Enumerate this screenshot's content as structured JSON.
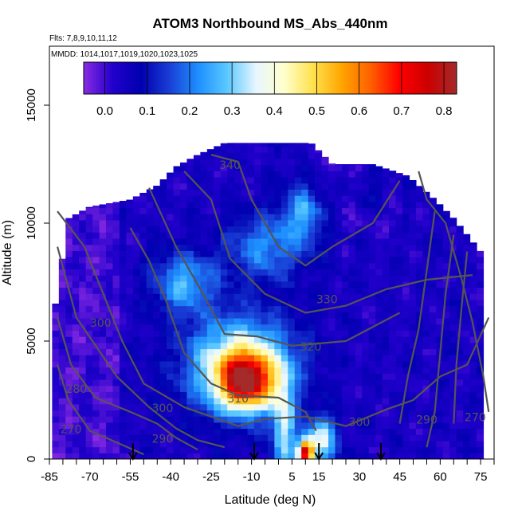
{
  "chart_data": {
    "type": "heatmap",
    "title": "ATOM3 Northbound MS_Abs_440nm",
    "subtitle_flights": "Flts: 7,8,9,10,11,12",
    "subtitle_dates": "MMDD: 1014,1017,1019,1020,1023,1025",
    "xlabel": "Latitude (deg N)",
    "ylabel": "Altitude (m)",
    "xlim": [
      -85,
      80
    ],
    "ylim": [
      0,
      17500
    ],
    "x_ticks": [
      -85,
      -70,
      -55,
      -40,
      -25,
      -10,
      5,
      15,
      30,
      45,
      60,
      75
    ],
    "x_tick_labels": [
      "-85",
      "-70",
      "-55",
      "-40",
      "-25",
      "-10",
      "5",
      "15",
      "30",
      "45",
      "60",
      "75"
    ],
    "y_ticks": [
      0,
      5000,
      10000,
      15000
    ],
    "y_tick_labels": [
      "0",
      "5000",
      "10000",
      "15000"
    ],
    "colorbar": {
      "range": [
        -0.05,
        0.83
      ],
      "ticks": [
        0.0,
        0.1,
        0.2,
        0.3,
        0.4,
        0.5,
        0.6,
        0.7,
        0.8
      ],
      "tick_labels": [
        "0.0",
        "0.1",
        "0.2",
        "0.3",
        "0.4",
        "0.5",
        "0.6",
        "0.7",
        "0.8"
      ],
      "colors": [
        "#8a2be2",
        "#2200cc",
        "#0000b0",
        "#1a3fd6",
        "#1e90ff",
        "#5bc8ff",
        "#e8f6ff",
        "#ffffcc",
        "#ffe14d",
        "#ffa500",
        "#ff6000",
        "#ff0000",
        "#cc0000",
        "#a52a2a"
      ]
    },
    "data_envelope": [
      {
        "lat": -83,
        "bottom": 0,
        "top": 6400
      },
      {
        "lat": -78,
        "bottom": 0,
        "top": 10200
      },
      {
        "lat": -70,
        "bottom": 0,
        "top": 10700
      },
      {
        "lat": -55,
        "bottom": 0,
        "top": 11000
      },
      {
        "lat": -45,
        "bottom": 0,
        "top": 11600
      },
      {
        "lat": -38,
        "bottom": 0,
        "top": 12400
      },
      {
        "lat": -30,
        "bottom": 0,
        "top": 12900
      },
      {
        "lat": -20,
        "bottom": 0,
        "top": 13400
      },
      {
        "lat": 0,
        "bottom": 0,
        "top": 13400
      },
      {
        "lat": 12,
        "bottom": 0,
        "top": 13400
      },
      {
        "lat": 20,
        "bottom": 0,
        "top": 12500
      },
      {
        "lat": 35,
        "bottom": 0,
        "top": 12500
      },
      {
        "lat": 48,
        "bottom": 0,
        "top": 12000
      },
      {
        "lat": 58,
        "bottom": 0,
        "top": 11000
      },
      {
        "lat": 65,
        "bottom": 0,
        "top": 10200
      },
      {
        "lat": 70,
        "bottom": 0,
        "top": 9500
      },
      {
        "lat": 77,
        "bottom": 0,
        "top": 8500
      }
    ],
    "hotspots": [
      {
        "lat": -12,
        "alt": 3300,
        "value": 0.55,
        "sd_lat": 7,
        "sd_alt": 800
      },
      {
        "lat": -14,
        "alt": 4000,
        "value": 0.38,
        "sd_lat": 14,
        "sd_alt": 1400
      },
      {
        "lat": -35,
        "alt": 7500,
        "value": 0.22,
        "sd_lat": 8,
        "sd_alt": 900
      },
      {
        "lat": -5,
        "alt": 9000,
        "value": 0.18,
        "sd_lat": 10,
        "sd_alt": 1000
      },
      {
        "lat": 10,
        "alt": 300,
        "value": 0.65,
        "sd_lat": 2,
        "sd_alt": 400
      },
      {
        "lat": 16,
        "alt": 800,
        "value": 0.32,
        "sd_lat": 4,
        "sd_alt": 700
      },
      {
        "lat": 2,
        "alt": 1200,
        "value": 0.28,
        "sd_lat": 3,
        "sd_alt": 1500
      },
      {
        "lat": 10,
        "alt": 10500,
        "value": 0.2,
        "sd_lat": 6,
        "sd_alt": 900
      },
      {
        "lat": 35,
        "alt": 11500,
        "value": 0.06,
        "sd_lat": 6,
        "sd_alt": 800
      }
    ],
    "contours": [
      {
        "label": "270",
        "points": [
          [
            -82,
            4000
          ],
          [
            -78,
            2500
          ],
          [
            -70,
            1200
          ],
          [
            -60,
            700
          ],
          [
            -50,
            200
          ]
        ]
      },
      {
        "label": "280",
        "points": [
          [
            -82,
            6000
          ],
          [
            -77,
            4000
          ],
          [
            -68,
            2600
          ],
          [
            -55,
            2000
          ],
          [
            -45,
            1500
          ],
          [
            -38,
            900
          ],
          [
            -30,
            400
          ]
        ]
      },
      {
        "label": "290",
        "points": [
          [
            -82,
            9000
          ],
          [
            -75,
            6000
          ],
          [
            -60,
            3500
          ],
          [
            -48,
            2200
          ],
          [
            -38,
            1300
          ],
          [
            -30,
            800
          ],
          [
            -20,
            500
          ]
        ]
      },
      {
        "label": "300",
        "points": [
          [
            -82,
            10500
          ],
          [
            -72,
            9000
          ],
          [
            -65,
            7000
          ],
          [
            -58,
            5000
          ],
          [
            -50,
            3200
          ],
          [
            -35,
            2200
          ],
          [
            -15,
            1400
          ],
          [
            -5,
            1700
          ],
          [
            10,
            1800
          ],
          [
            25,
            1400
          ],
          [
            40,
            2100
          ],
          [
            50,
            2500
          ],
          [
            60,
            3500
          ],
          [
            70,
            4000
          ],
          [
            78,
            6000
          ]
        ]
      },
      {
        "label": "310",
        "points": [
          [
            -55,
            9800
          ],
          [
            -48,
            8400
          ],
          [
            -42,
            6800
          ],
          [
            -35,
            4500
          ],
          [
            -25,
            3200
          ],
          [
            -15,
            2700
          ],
          [
            0,
            2600
          ],
          [
            10,
            2000
          ],
          [
            14,
            1200
          ]
        ]
      },
      {
        "label": "320",
        "points": [
          [
            -48,
            11500
          ],
          [
            -38,
            9000
          ],
          [
            -28,
            7000
          ],
          [
            -20,
            5300
          ],
          [
            -8,
            5200
          ],
          [
            5,
            4800
          ],
          [
            25,
            5000
          ],
          [
            45,
            6200
          ]
        ]
      },
      {
        "label": "330",
        "points": [
          [
            -35,
            12200
          ],
          [
            -25,
            11000
          ],
          [
            -18,
            8500
          ],
          [
            -5,
            7000
          ],
          [
            10,
            6200
          ],
          [
            25,
            6500
          ],
          [
            40,
            7200
          ],
          [
            55,
            7600
          ],
          [
            72,
            7800
          ]
        ]
      },
      {
        "label": "340",
        "points": [
          [
            -25,
            12900
          ],
          [
            -15,
            12600
          ],
          [
            -10,
            11000
          ],
          [
            0,
            9000
          ],
          [
            10,
            8200
          ],
          [
            20,
            9000
          ],
          [
            35,
            10000
          ],
          [
            45,
            11800
          ]
        ]
      },
      {
        "label": "",
        "points": [
          [
            52,
            12200
          ],
          [
            55,
            11000
          ],
          [
            62,
            10000
          ],
          [
            68,
            7600
          ],
          [
            72,
            5800
          ],
          [
            76,
            3500
          ],
          [
            78,
            2000
          ]
        ]
      },
      {
        "label": "",
        "points": [
          [
            58,
            10500
          ],
          [
            55,
            8000
          ],
          [
            52,
            5500
          ],
          [
            48,
            3500
          ],
          [
            45,
            1500
          ]
        ]
      },
      {
        "label": "",
        "points": [
          [
            65,
            9500
          ],
          [
            62,
            7000
          ],
          [
            60,
            4500
          ],
          [
            58,
            2000
          ],
          [
            55,
            500
          ]
        ]
      },
      {
        "label": "",
        "points": [
          [
            70,
            8800
          ],
          [
            68,
            6500
          ],
          [
            66,
            4000
          ],
          [
            65,
            1500
          ]
        ]
      }
    ],
    "contour_labels": [
      {
        "text": "340",
        "lat": -18,
        "alt": 12300
      },
      {
        "text": "330",
        "lat": 18,
        "alt": 6600
      },
      {
        "text": "320",
        "lat": 12,
        "alt": 4600
      },
      {
        "text": "310",
        "lat": -15,
        "alt": 2400
      },
      {
        "text": "300",
        "lat": -43,
        "alt": 2000
      },
      {
        "text": "300",
        "lat": 30,
        "alt": 1400
      },
      {
        "text": "300",
        "lat": -66,
        "alt": 5600
      },
      {
        "text": "290",
        "lat": -43,
        "alt": 700
      },
      {
        "text": "290",
        "lat": 55,
        "alt": 1500
      },
      {
        "text": "280",
        "lat": -75,
        "alt": 2800
      },
      {
        "text": "270",
        "lat": -77,
        "alt": 1100
      },
      {
        "text": "270",
        "lat": 73,
        "alt": 1600
      }
    ],
    "arrows": [
      -54,
      -9,
      15,
      38
    ]
  }
}
